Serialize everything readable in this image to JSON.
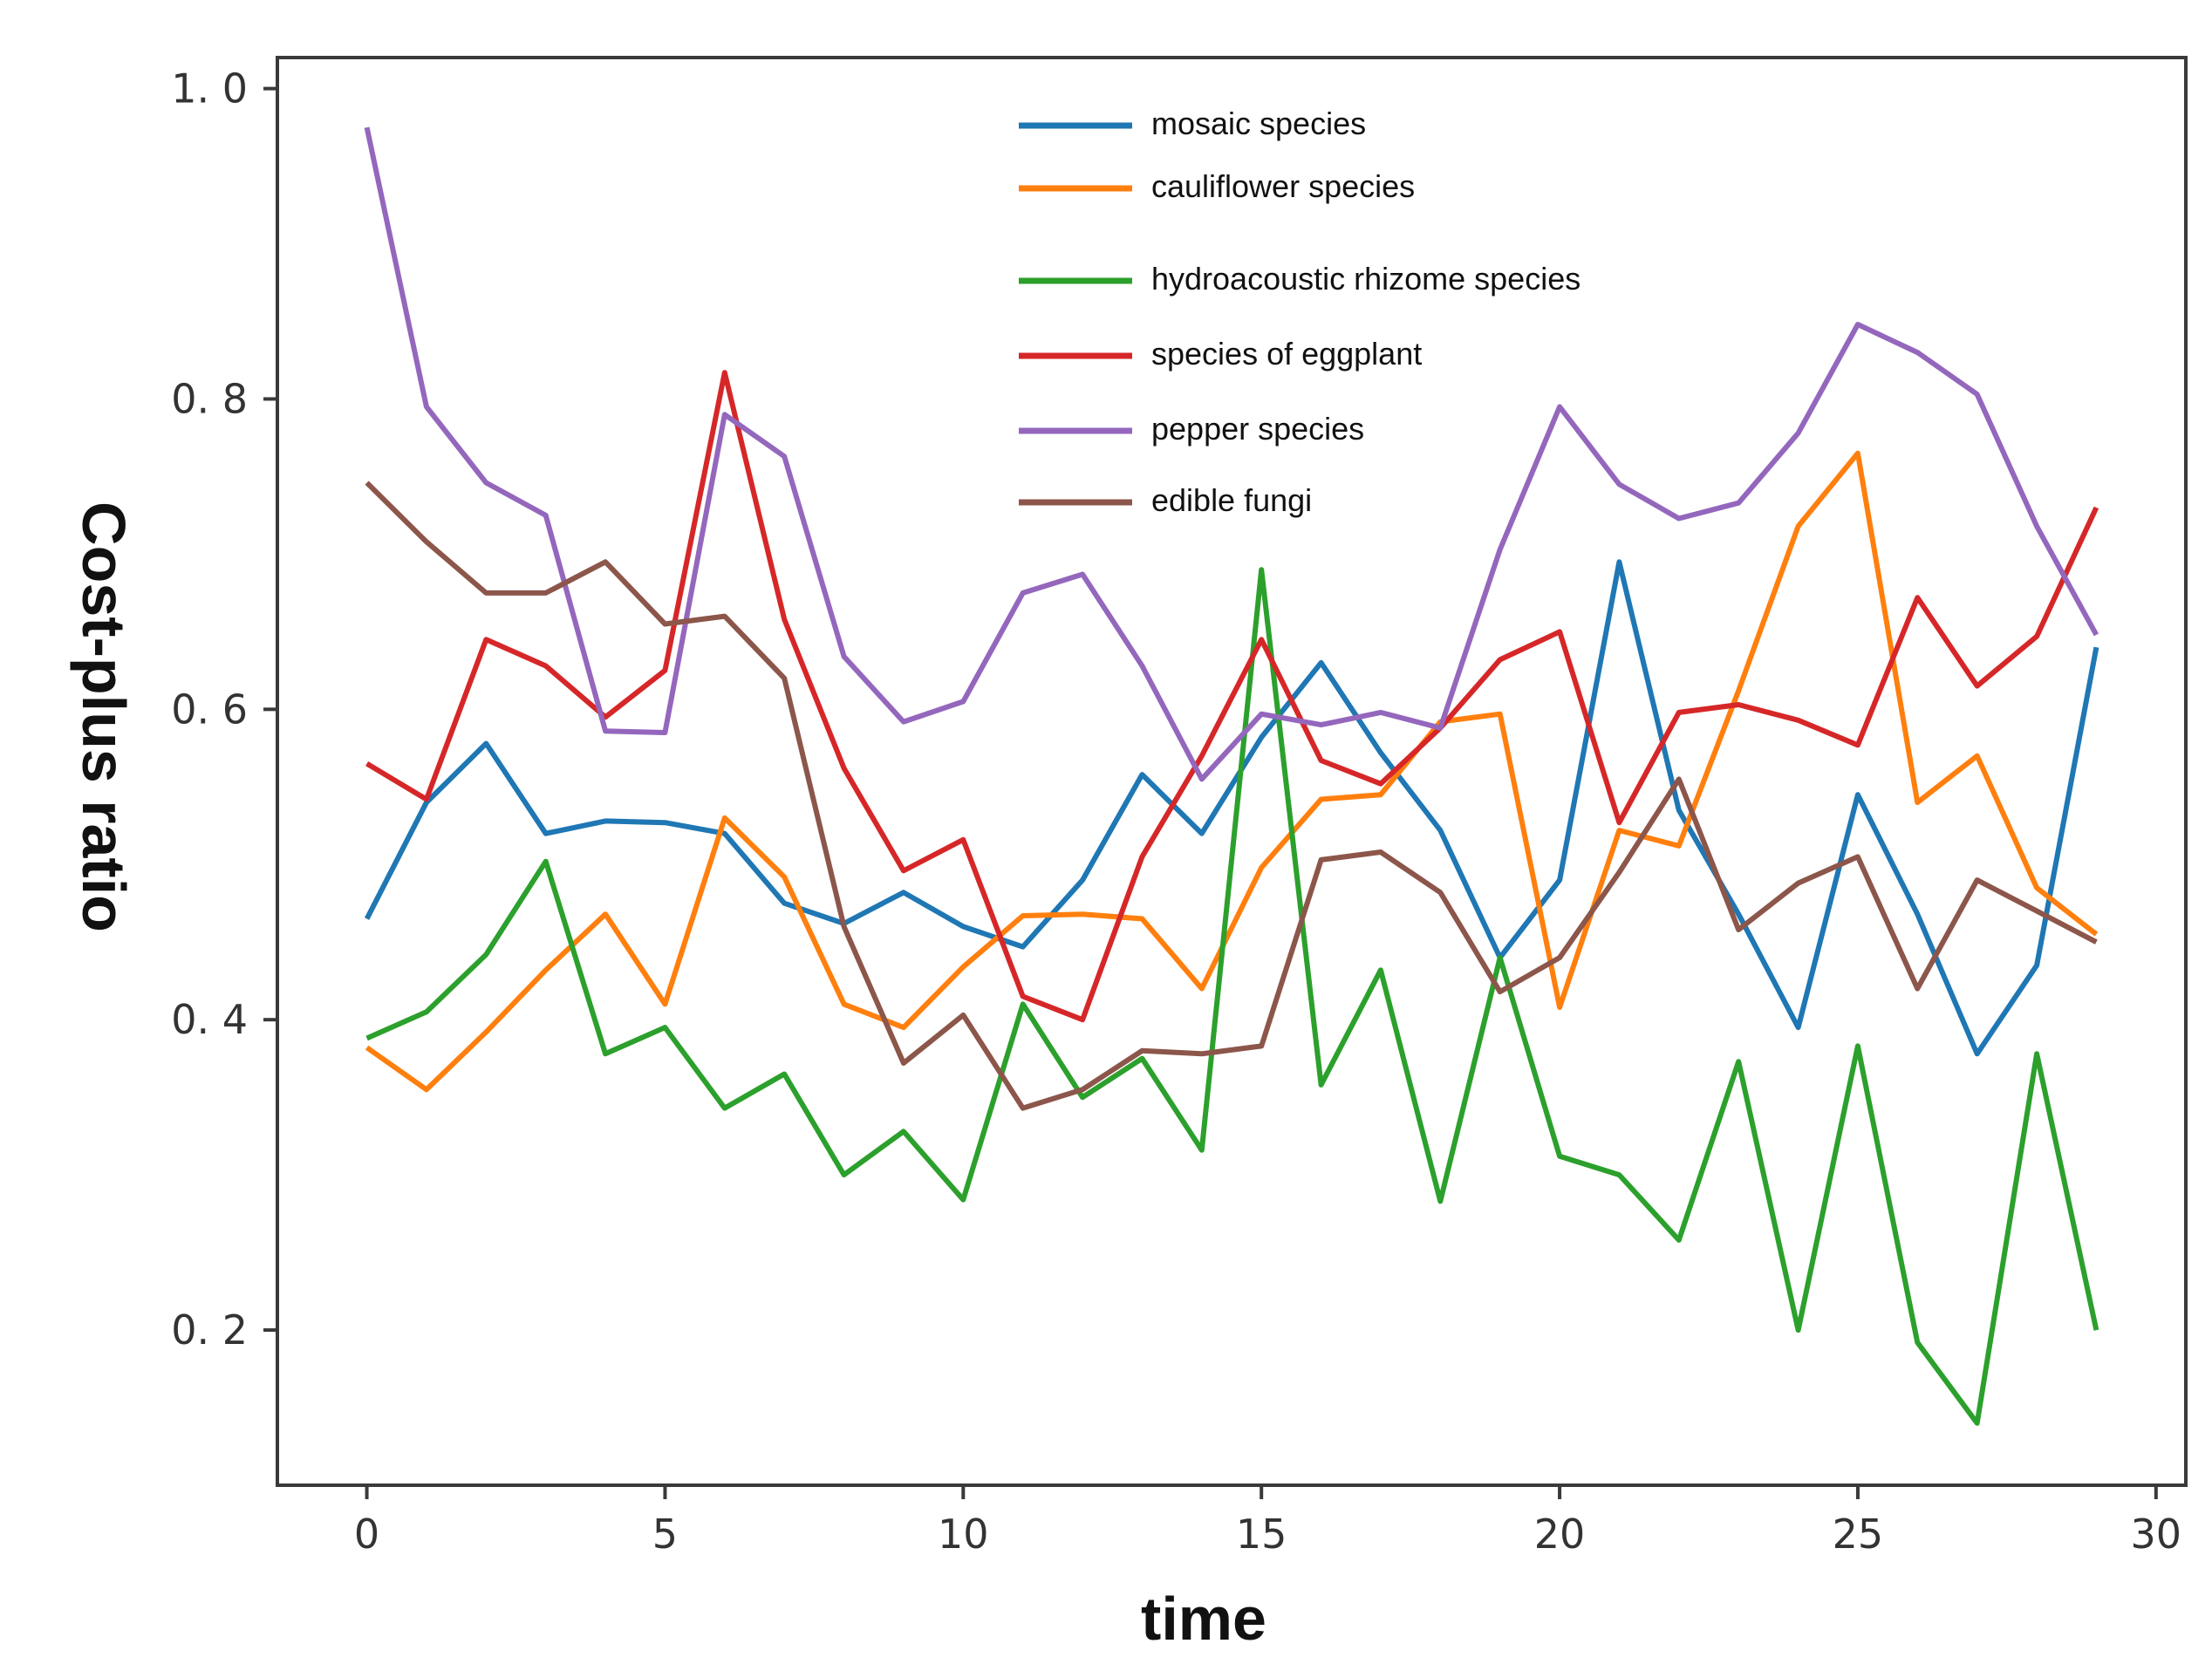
{
  "chart_data": {
    "type": "line",
    "title": "",
    "xlabel": "time",
    "ylabel": "Cost-plus ratio",
    "xlim": [
      -1.5,
      30.5
    ],
    "ylim": [
      0.1,
      1.02
    ],
    "x_ticks": [
      0,
      5,
      10,
      15,
      20,
      25,
      30
    ],
    "x_tick_labels": [
      "0",
      "5",
      "10",
      "15",
      "20",
      "25",
      "30"
    ],
    "y_ticks": [
      0.2,
      0.4,
      0.6,
      0.8,
      1.0
    ],
    "y_tick_labels": [
      "0. 2",
      "0. 4",
      "0. 6",
      "0. 8",
      "1. 0"
    ],
    "grid": false,
    "legend_position": "top-center",
    "x": [
      0,
      1,
      2,
      3,
      4,
      5,
      6,
      7,
      8,
      9,
      10,
      11,
      12,
      13,
      14,
      15,
      16,
      17,
      18,
      19,
      20,
      21,
      22,
      23,
      24,
      25,
      26,
      27,
      28,
      29
    ],
    "series": [
      {
        "name": "mosaic species",
        "color": "#1f77b4",
        "values": [
          0.465,
          0.54,
          0.578,
          0.52,
          0.528,
          0.527,
          0.52,
          0.475,
          0.462,
          0.482,
          0.46,
          0.447,
          0.49,
          0.558,
          0.52,
          0.582,
          0.63,
          0.572,
          0.522,
          0.44,
          0.49,
          0.695,
          0.535,
          0.468,
          0.395,
          0.545,
          0.468,
          0.378,
          0.435,
          0.64
        ]
      },
      {
        "name": "cauliflower species",
        "color": "#ff7f0e",
        "values": [
          0.382,
          0.355,
          0.392,
          0.432,
          0.468,
          0.41,
          0.53,
          0.492,
          0.41,
          0.395,
          0.434,
          0.467,
          0.468,
          0.465,
          0.42,
          0.498,
          0.542,
          0.545,
          0.592,
          0.597,
          0.408,
          0.522,
          0.512,
          0.612,
          0.718,
          0.765,
          0.54,
          0.57,
          0.485,
          0.455
        ]
      },
      {
        "name": "hydroacoustic rhizome species",
        "color": "#2ca02c",
        "values": [
          0.388,
          0.405,
          0.442,
          0.502,
          0.378,
          0.395,
          0.343,
          0.365,
          0.3,
          0.328,
          0.284,
          0.41,
          0.35,
          0.375,
          0.316,
          0.69,
          0.358,
          0.432,
          0.283,
          0.44,
          0.312,
          0.3,
          0.258,
          0.373,
          0.2,
          0.383,
          0.192,
          0.14,
          0.378,
          0.2
        ]
      },
      {
        "name": "species of eggplant",
        "color": "#d62728",
        "values": [
          0.565,
          0.542,
          0.645,
          0.628,
          0.595,
          0.625,
          0.817,
          0.658,
          0.562,
          0.496,
          0.516,
          0.415,
          0.4,
          0.505,
          0.57,
          0.645,
          0.567,
          0.552,
          0.588,
          0.632,
          0.65,
          0.527,
          0.598,
          0.603,
          0.593,
          0.577,
          0.672,
          0.615,
          0.647,
          0.73
        ]
      },
      {
        "name": "pepper species",
        "color": "#9467bd",
        "values": [
          0.975,
          0.795,
          0.746,
          0.725,
          0.586,
          0.585,
          0.79,
          0.763,
          0.634,
          0.592,
          0.605,
          0.675,
          0.687,
          0.628,
          0.555,
          0.597,
          0.59,
          0.598,
          0.588,
          0.703,
          0.795,
          0.745,
          0.723,
          0.733,
          0.778,
          0.848,
          0.83,
          0.803,
          0.718,
          0.648
        ]
      },
      {
        "name": "edible fungi",
        "color": "#8c564b",
        "values": [
          0.746,
          0.708,
          0.675,
          0.675,
          0.695,
          0.655,
          0.66,
          0.62,
          0.46,
          0.372,
          0.403,
          0.343,
          0.355,
          0.38,
          0.378,
          0.383,
          0.503,
          0.508,
          0.482,
          0.418,
          0.44,
          0.495,
          0.555,
          0.458,
          0.488,
          0.505,
          0.42,
          0.49,
          0.47,
          0.45
        ]
      }
    ]
  }
}
